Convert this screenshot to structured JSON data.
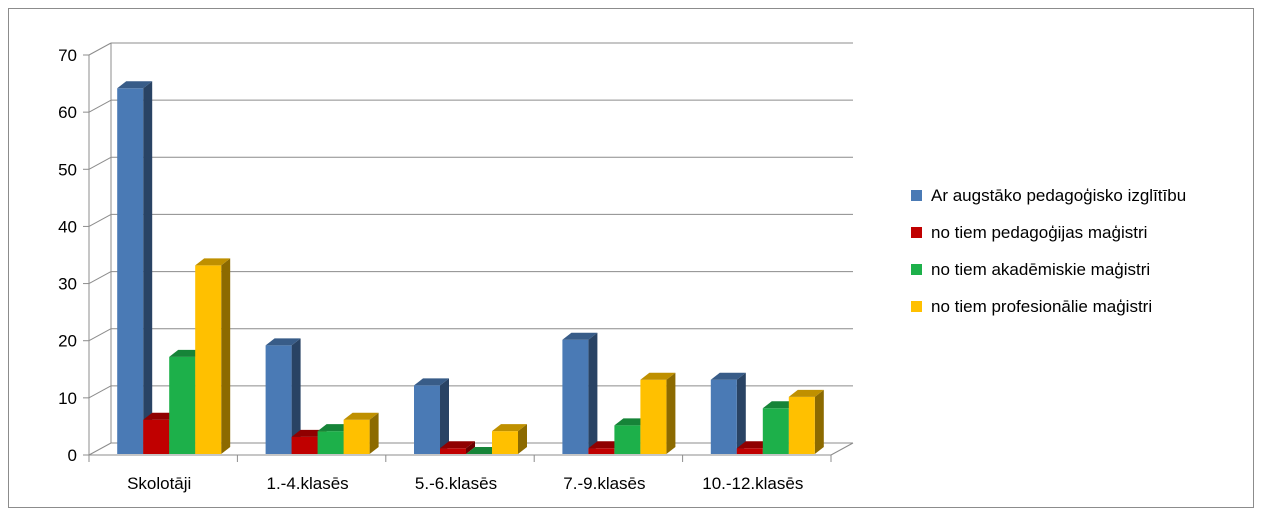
{
  "chart_data": {
    "type": "bar",
    "title": "",
    "xlabel": "",
    "ylabel": "",
    "ylim": [
      0,
      70
    ],
    "yticks": [
      0,
      10,
      20,
      30,
      40,
      50,
      60,
      70
    ],
    "grid": true,
    "legend_position": "right",
    "categories": [
      "Skolotāji",
      "1.-4.klasēs",
      "5.-6.klasēs",
      "7.-9.klasēs",
      "10.-12.klasēs"
    ],
    "series": [
      {
        "name": "Ar augstāko pedagoģisko izglītību",
        "color": "#4a7ab5",
        "values": [
          64,
          19,
          12,
          20,
          13
        ]
      },
      {
        "name": "no tiem pedagoģijas maģistri",
        "color": "#c00000",
        "values": [
          6,
          3,
          1,
          1,
          1
        ]
      },
      {
        "name": "no tiem akadēmiskie maģistri",
        "color": "#1db04a",
        "values": [
          17,
          4,
          0,
          5,
          8
        ]
      },
      {
        "name": "no tiem profesionālie maģistri",
        "color": "#ffc000",
        "values": [
          33,
          6,
          4,
          13,
          10
        ]
      }
    ]
  }
}
